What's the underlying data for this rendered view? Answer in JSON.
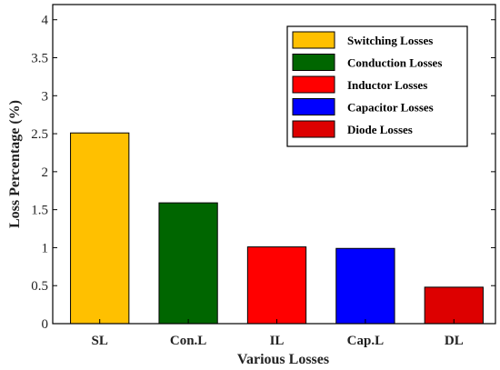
{
  "chart_data": {
    "type": "bar",
    "title": "",
    "xlabel": "Various Losses",
    "ylabel": "Loss Percentage (%)",
    "categories": [
      "SL",
      "Con.L",
      "IL",
      "Cap.L",
      "DL"
    ],
    "values": [
      2.51,
      1.59,
      1.01,
      0.99,
      0.48
    ],
    "colors": [
      "#FFC000",
      "#006600",
      "#FF0000",
      "#0000FF",
      "#DD0000"
    ],
    "legend": [
      "Switching Losses",
      "Conduction Losses",
      "Inductor Losses",
      "Capacitor Losses",
      "Diode Losses"
    ],
    "legend_position": "top-right",
    "ylim": [
      0,
      4.2
    ],
    "yticks": [
      "0",
      "0.5",
      "1",
      "1.5",
      "2",
      "2.5",
      "3",
      "3.5",
      "4"
    ],
    "grid": false
  }
}
